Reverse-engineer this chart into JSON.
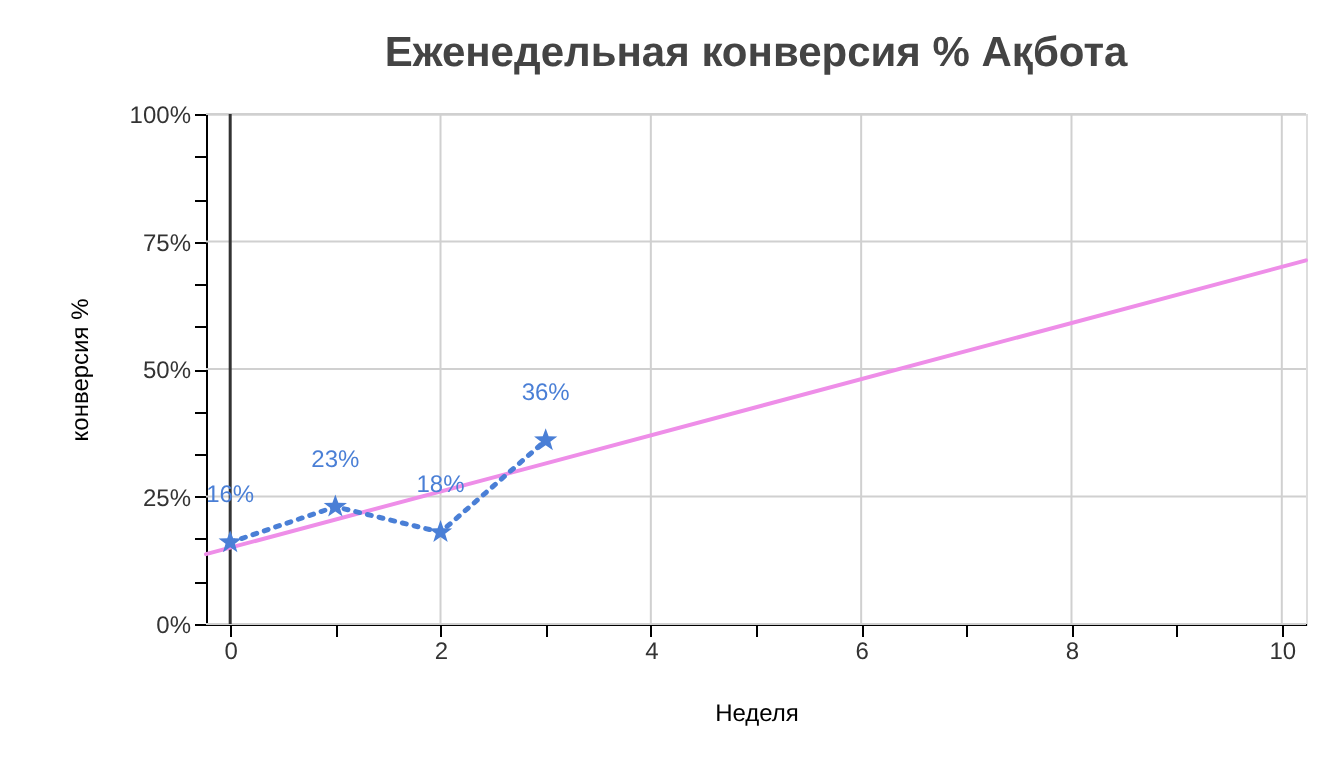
{
  "chart_data": {
    "type": "line",
    "title": "Еженедельная конверсия %  Ақбота",
    "xlabel": "Неделя",
    "ylabel": "конверсия %",
    "series": [
      {
        "x": [
          0,
          1,
          2,
          3
        ],
        "values": [
          16,
          23,
          18,
          36
        ],
        "color": "#4a7fd6",
        "marker": "star",
        "line_style": "dotted",
        "value_labels": [
          "16%",
          "23%",
          "18%",
          "36%"
        ]
      },
      {
        "x": [
          -0.23,
          10.23
        ],
        "values": [
          13.7,
          71.3
        ],
        "color": "#ee8ee8",
        "marker": "none",
        "line_style": "solid"
      }
    ],
    "xlim": [
      -0.23,
      10.23
    ],
    "xticks": [
      0,
      {
        "value": 1,
        "label": null
      },
      2,
      {
        "value": 3,
        "label": null
      },
      4,
      {
        "value": 5,
        "label": null
      },
      6,
      {
        "value": 7,
        "label": null
      },
      8,
      {
        "value": 9,
        "label": null
      },
      10
    ],
    "ylim": [
      0,
      100
    ],
    "yticks": [
      {
        "value": 0,
        "label": "0%"
      },
      {
        "value": 8.33,
        "label": null
      },
      {
        "value": 16.67,
        "label": null
      },
      {
        "value": 25,
        "label": "25%"
      },
      {
        "value": 33.33,
        "label": null
      },
      {
        "value": 41.67,
        "label": null
      },
      {
        "value": 50,
        "label": "50%"
      },
      {
        "value": 58.33,
        "label": null
      },
      {
        "value": 66.67,
        "label": null
      },
      {
        "value": 75,
        "label": "75%"
      },
      {
        "value": 83.33,
        "label": null
      },
      {
        "value": 91.67,
        "label": null
      },
      {
        "value": 100,
        "label": "100%"
      }
    ],
    "grid": true,
    "ref_lines": [
      {
        "axis": "x",
        "value": 0,
        "color": "#333333"
      }
    ]
  }
}
